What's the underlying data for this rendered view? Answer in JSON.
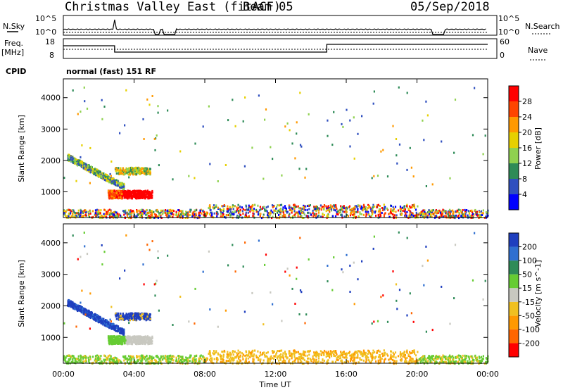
{
  "header": {
    "title": "Christmas Valley East (fitACF)",
    "beam": "Beam 05",
    "date": "05/Sep/2018"
  },
  "strip": {
    "nsky_label": "N.Sky",
    "nsearch_label": "N.Search",
    "freq_label": "Freq.",
    "freq_unit": "[MHz]",
    "nave_label": "Nave",
    "cpid_label": "CPID",
    "cpid_text": "normal (fast) 151 RF",
    "nsky_ticks": [
      "10^5",
      "10^0"
    ],
    "nsearch_ticks": [
      "10^5",
      "10^0"
    ],
    "freq_ticks": [
      "18",
      "8"
    ],
    "nave_ticks": [
      "60",
      "0"
    ]
  },
  "chart_data": [
    {
      "type": "heatmap",
      "name": "power",
      "ylabel": "Slant Range [km]",
      "ylim": [
        180,
        4600
      ],
      "yticks": [
        1000,
        2000,
        3000,
        4000
      ],
      "xlim": [
        0,
        24
      ],
      "colorbar": {
        "label": "Power [dB]",
        "ticks": [
          4,
          8,
          12,
          16,
          20,
          24,
          28
        ],
        "range": [
          0,
          32
        ],
        "colors": [
          "#0000ff",
          "#2f4fbf",
          "#2e8b57",
          "#8fd14f",
          "#e6d000",
          "#ff9900",
          "#ff4500",
          "#ff0000"
        ]
      }
    },
    {
      "type": "heatmap",
      "name": "velocity",
      "ylabel": "Slant Range [km]",
      "ylim": [
        180,
        4600
      ],
      "yticks": [
        1000,
        2000,
        3000,
        4000
      ],
      "xlim": [
        0,
        24
      ],
      "colorbar": {
        "label": "Velocity [m s^-1]",
        "ticks": [
          "200",
          "100",
          "50",
          "15",
          "-15",
          "-50",
          "-100",
          "-200"
        ],
        "colors": [
          "#1f3fbf",
          "#2f6fd0",
          "#2e8b57",
          "#66cc33",
          "#c8c8c0",
          "#f0c020",
          "#ff9900",
          "#ff6600",
          "#ff0000"
        ]
      }
    }
  ],
  "x_axis": {
    "label": "Time UT",
    "ticks": [
      "00:00",
      "04:00",
      "08:00",
      "12:00",
      "16:00",
      "20:00",
      "00:00"
    ]
  }
}
